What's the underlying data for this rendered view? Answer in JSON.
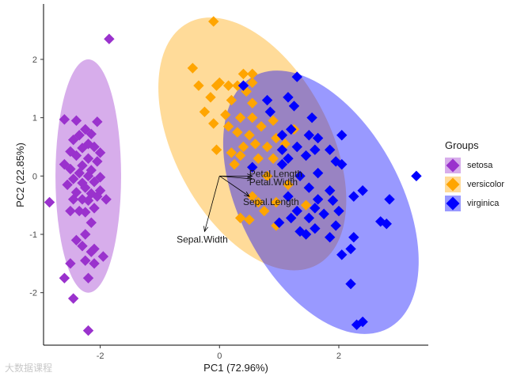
{
  "chart_data": {
    "type": "scatter",
    "title": "",
    "xlabel": "PC1 (72.96%)",
    "ylabel": "PC2 (22.85%)",
    "xlim": [
      -2.95,
      3.5
    ],
    "ylim": [
      -2.9,
      2.95
    ],
    "xticks": [
      -2,
      0,
      2
    ],
    "yticks": [
      -2,
      -1,
      0,
      1,
      2
    ],
    "legend_title": "Groups",
    "legend_position": "right",
    "groups": [
      {
        "name": "setosa",
        "color": "#9A32CD",
        "ellipse": {
          "cx": -2.2,
          "cy": 0.0,
          "rx": 0.55,
          "ry": 2.0,
          "angle": 0
        }
      },
      {
        "name": "versicolor",
        "color": "#FFA500",
        "ellipse": {
          "cx": 0.55,
          "cy": 0.55,
          "rx": 1.3,
          "ry": 2.35,
          "angle": 28
        }
      },
      {
        "name": "virginica",
        "color": "#0000FF",
        "ellipse": {
          "cx": 1.7,
          "cy": -0.45,
          "rx": 1.35,
          "ry": 2.45,
          "angle": 28
        }
      }
    ],
    "series": [
      {
        "name": "setosa",
        "points": [
          [
            -1.85,
            2.35
          ],
          [
            -2.6,
            0.97
          ],
          [
            -2.4,
            0.95
          ],
          [
            -2.05,
            0.93
          ],
          [
            -2.25,
            0.8
          ],
          [
            -2.15,
            0.72
          ],
          [
            -2.35,
            0.7
          ],
          [
            -2.45,
            0.62
          ],
          [
            -2.2,
            0.55
          ],
          [
            -2.1,
            0.5
          ],
          [
            -2.3,
            0.48
          ],
          [
            -2.5,
            0.42
          ],
          [
            -2.0,
            0.4
          ],
          [
            -2.4,
            0.35
          ],
          [
            -2.2,
            0.3
          ],
          [
            -2.05,
            0.25
          ],
          [
            -2.6,
            0.2
          ],
          [
            -2.3,
            0.18
          ],
          [
            -2.5,
            0.12
          ],
          [
            -2.15,
            0.1
          ],
          [
            -2.35,
            0.05
          ],
          [
            -2.2,
            0.0
          ],
          [
            -2.0,
            -0.02
          ],
          [
            -2.45,
            -0.05
          ],
          [
            -2.1,
            -0.1
          ],
          [
            -2.3,
            -0.12
          ],
          [
            -2.55,
            -0.15
          ],
          [
            -2.25,
            -0.2
          ],
          [
            -2.0,
            -0.25
          ],
          [
            -2.4,
            -0.28
          ],
          [
            -2.15,
            -0.3
          ],
          [
            -2.05,
            -0.35
          ],
          [
            -2.3,
            -0.4
          ],
          [
            -2.2,
            -0.42
          ],
          [
            -2.45,
            -0.4
          ],
          [
            -1.9,
            -0.4
          ],
          [
            -2.85,
            -0.45
          ],
          [
            -2.1,
            -0.55
          ],
          [
            -2.35,
            -0.6
          ],
          [
            -2.5,
            -0.6
          ],
          [
            -2.25,
            -0.62
          ],
          [
            -2.15,
            -0.8
          ],
          [
            -2.25,
            -1.0
          ],
          [
            -2.4,
            -1.1
          ],
          [
            -2.3,
            -1.2
          ],
          [
            -2.1,
            -1.25
          ],
          [
            -2.15,
            -1.3
          ],
          [
            -1.95,
            -1.38
          ],
          [
            -2.1,
            -1.5
          ],
          [
            -2.25,
            -1.45
          ],
          [
            -2.5,
            -1.5
          ],
          [
            -2.2,
            -1.75
          ],
          [
            -2.6,
            -1.75
          ],
          [
            -2.45,
            -2.1
          ],
          [
            -2.2,
            -2.65
          ]
        ]
      },
      {
        "name": "versicolor",
        "points": [
          [
            -0.1,
            2.65
          ],
          [
            -0.45,
            1.85
          ],
          [
            0.0,
            1.6
          ],
          [
            0.4,
            1.75
          ],
          [
            0.55,
            1.75
          ],
          [
            -0.35,
            1.55
          ],
          [
            -0.05,
            1.55
          ],
          [
            0.15,
            1.55
          ],
          [
            0.3,
            1.55
          ],
          [
            0.55,
            1.6
          ],
          [
            0.45,
            1.45
          ],
          [
            -0.15,
            1.35
          ],
          [
            0.2,
            1.3
          ],
          [
            0.55,
            1.25
          ],
          [
            -0.25,
            1.1
          ],
          [
            0.1,
            1.05
          ],
          [
            0.35,
            1.0
          ],
          [
            0.55,
            1.0
          ],
          [
            0.9,
            0.95
          ],
          [
            -0.1,
            0.9
          ],
          [
            0.15,
            0.85
          ],
          [
            0.7,
            0.85
          ],
          [
            0.3,
            0.75
          ],
          [
            0.5,
            0.7
          ],
          [
            0.95,
            0.65
          ],
          [
            1.25,
            0.8
          ],
          [
            0.8,
            0.5
          ],
          [
            1.1,
            0.55
          ],
          [
            0.6,
            0.55
          ],
          [
            0.4,
            0.5
          ],
          [
            -0.05,
            0.45
          ],
          [
            0.2,
            0.4
          ],
          [
            0.35,
            0.35
          ],
          [
            0.65,
            0.3
          ],
          [
            0.9,
            0.3
          ],
          [
            0.25,
            0.2
          ],
          [
            0.55,
            0.15
          ],
          [
            0.8,
            0.0
          ],
          [
            1.15,
            -0.15
          ],
          [
            0.55,
            -0.35
          ],
          [
            0.65,
            -0.45
          ],
          [
            0.75,
            -0.6
          ],
          [
            0.95,
            -0.45
          ],
          [
            1.45,
            -0.5
          ],
          [
            0.35,
            -0.72
          ],
          [
            0.5,
            -0.75
          ],
          [
            0.95,
            -0.85
          ]
        ]
      },
      {
        "name": "virginica",
        "points": [
          [
            1.3,
            1.7
          ],
          [
            0.4,
            1.55
          ],
          [
            0.8,
            1.3
          ],
          [
            1.15,
            1.35
          ],
          [
            1.25,
            1.2
          ],
          [
            1.55,
            1.0
          ],
          [
            0.85,
            1.1
          ],
          [
            1.2,
            0.8
          ],
          [
            1.05,
            0.7
          ],
          [
            1.5,
            0.7
          ],
          [
            1.65,
            0.65
          ],
          [
            2.05,
            0.7
          ],
          [
            1.3,
            0.5
          ],
          [
            1.05,
            0.45
          ],
          [
            1.6,
            0.45
          ],
          [
            1.45,
            0.35
          ],
          [
            1.85,
            0.45
          ],
          [
            1.95,
            0.25
          ],
          [
            2.05,
            0.2
          ],
          [
            1.15,
            0.3
          ],
          [
            1.05,
            0.2
          ],
          [
            0.55,
            0.15
          ],
          [
            1.65,
            0.05
          ],
          [
            1.35,
            0.0
          ],
          [
            3.3,
            0.0
          ],
          [
            1.5,
            -0.2
          ],
          [
            1.85,
            -0.25
          ],
          [
            2.4,
            -0.25
          ],
          [
            2.85,
            -0.4
          ],
          [
            1.15,
            -0.35
          ],
          [
            1.65,
            -0.4
          ],
          [
            1.9,
            -0.42
          ],
          [
            2.25,
            -0.35
          ],
          [
            1.3,
            -0.6
          ],
          [
            1.6,
            -0.55
          ],
          [
            2.0,
            -0.6
          ],
          [
            1.2,
            -0.72
          ],
          [
            1.5,
            -0.72
          ],
          [
            1.75,
            -0.65
          ],
          [
            2.7,
            -0.78
          ],
          [
            2.8,
            -0.82
          ],
          [
            1.95,
            -0.85
          ],
          [
            1.6,
            -0.9
          ],
          [
            1.35,
            -0.95
          ],
          [
            1.0,
            -0.8
          ],
          [
            1.45,
            -1.0
          ],
          [
            1.85,
            -1.05
          ],
          [
            2.25,
            -1.05
          ],
          [
            2.2,
            -1.25
          ],
          [
            2.05,
            -1.35
          ],
          [
            2.2,
            -1.85
          ],
          [
            2.3,
            -2.55
          ],
          [
            2.4,
            -2.5
          ]
        ]
      }
    ],
    "variables": [
      {
        "name": "Petal.Length",
        "x": 0.55,
        "y": 0.0
      },
      {
        "name": "Petal.Width",
        "x": 0.55,
        "y": -0.05
      },
      {
        "name": "Sepal.Length",
        "x": 0.5,
        "y": -0.35
      },
      {
        "name": "Sepal.Width",
        "x": -0.25,
        "y": -0.95
      }
    ],
    "watermark": "大数据课程"
  }
}
